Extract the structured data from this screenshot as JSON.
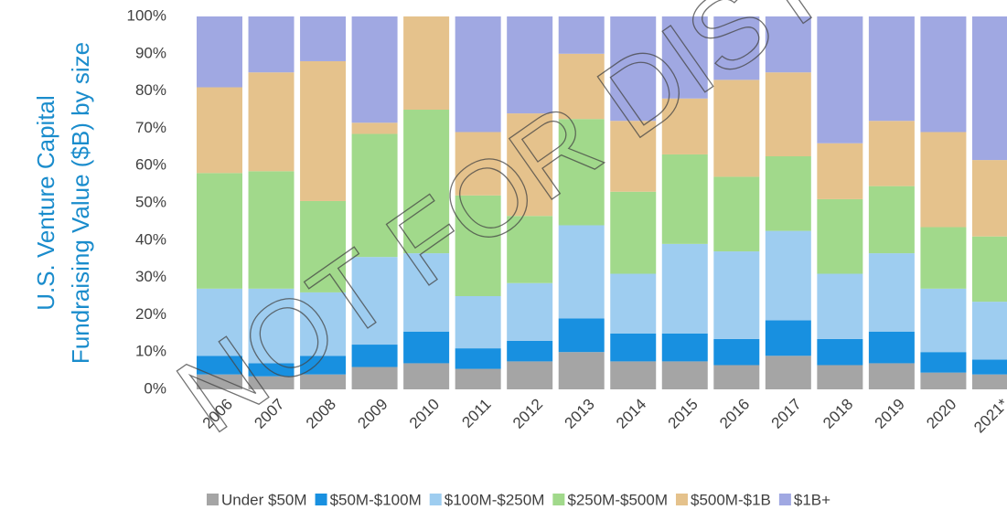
{
  "chart_data": {
    "type": "stacked_bar_percent",
    "ylabel": [
      "U.S. Venture Capital",
      "Fundraising Value ($B) by size"
    ],
    "ylabel_color": "#1a8ccc",
    "watermark": "NOT FOR DISTRIBUTION",
    "categories": [
      "2006",
      "2007",
      "2008",
      "2009",
      "2010",
      "2011",
      "2012",
      "2013",
      "2014",
      "2015",
      "2016",
      "2017",
      "2018",
      "2019",
      "2020",
      "2021*"
    ],
    "series": [
      {
        "name": "Under $50M",
        "color": "#a5a5a5",
        "values": [
          4,
          3.5,
          4,
          6,
          7,
          5.5,
          7.5,
          10,
          7.5,
          7.5,
          6.5,
          9,
          6.5,
          7,
          4.5,
          4
        ]
      },
      {
        "name": "$50M-$100M",
        "color": "#1890e0",
        "values": [
          5,
          3.5,
          5,
          6,
          8.5,
          5.5,
          5.5,
          9,
          7.5,
          7.5,
          7,
          9.5,
          7,
          8.5,
          5.5,
          4
        ]
      },
      {
        "name": "$100M-$250M",
        "color": "#9ecdf0",
        "values": [
          18,
          20,
          17,
          23.5,
          21,
          14,
          15.5,
          25,
          16,
          24,
          23.5,
          24,
          17.5,
          21,
          17,
          15.5
        ]
      },
      {
        "name": "$250M-$500M",
        "color": "#a1d98b",
        "values": [
          31,
          31.5,
          24.5,
          33,
          38.5,
          27,
          18,
          28.5,
          22,
          24,
          20,
          20,
          20,
          18,
          16.5,
          17.5
        ]
      },
      {
        "name": "$500M-$1B",
        "color": "#e5c28c",
        "values": [
          23,
          26.5,
          37.5,
          3,
          25,
          17,
          27.5,
          17.5,
          19,
          15,
          26,
          22.5,
          15,
          17.5,
          25.5,
          20.5
        ]
      },
      {
        "name": "$1B+",
        "color": "#a0a8e2",
        "values": [
          19,
          15,
          12,
          28.5,
          0,
          31,
          26,
          10,
          28,
          22,
          17,
          15,
          34,
          28,
          31,
          38.5
        ]
      }
    ],
    "ylim": [
      0,
      100
    ],
    "yticks": [
      {
        "value": 0,
        "label": "0%"
      },
      {
        "value": 10,
        "label": "10%"
      },
      {
        "value": 20,
        "label": "20%"
      },
      {
        "value": 30,
        "label": "30%"
      },
      {
        "value": 40,
        "label": "40%"
      },
      {
        "value": 50,
        "label": "50%"
      },
      {
        "value": 60,
        "label": "60%"
      },
      {
        "value": 70,
        "label": "70%"
      },
      {
        "value": 80,
        "label": "80%"
      },
      {
        "value": 90,
        "label": "90%"
      },
      {
        "value": 100,
        "label": "100%"
      }
    ],
    "legend": "bottom"
  }
}
